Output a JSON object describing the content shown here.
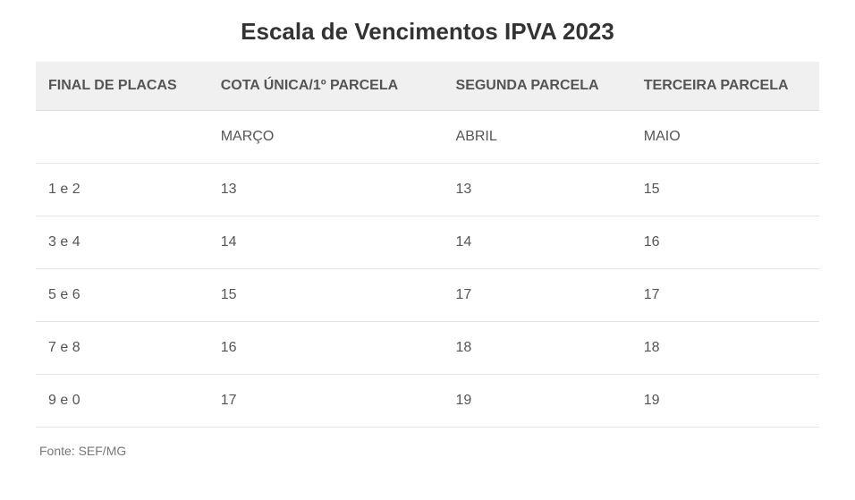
{
  "title": "Escala de Vencimentos IPVA 2023",
  "table": {
    "columns": [
      "FINAL DE PLACAS",
      "COTA ÚNICA/1º PARCELA",
      "SEGUNDA PARCELA",
      "TERCEIRA PARCELA"
    ],
    "rows": [
      [
        "",
        "MARÇO",
        "ABRIL",
        "MAIO"
      ],
      [
        "1 e 2",
        "13",
        "13",
        "15"
      ],
      [
        "3 e 4",
        "14",
        "14",
        "16"
      ],
      [
        "5 e 6",
        "15",
        "17",
        "17"
      ],
      [
        "7 e 8",
        "16",
        "18",
        "18"
      ],
      [
        "9 e 0",
        "17",
        "19",
        "19"
      ]
    ],
    "header_bg": "#f0f0f0",
    "border_color": "#e5e5e5",
    "text_color": "#555555",
    "title_color": "#333333",
    "font_family": "Arial",
    "title_fontsize": 26,
    "header_fontsize": 16,
    "cell_fontsize": 16,
    "col_widths_pct": [
      22,
      30,
      24,
      24
    ]
  },
  "source": "Fonte: SEF/MG"
}
